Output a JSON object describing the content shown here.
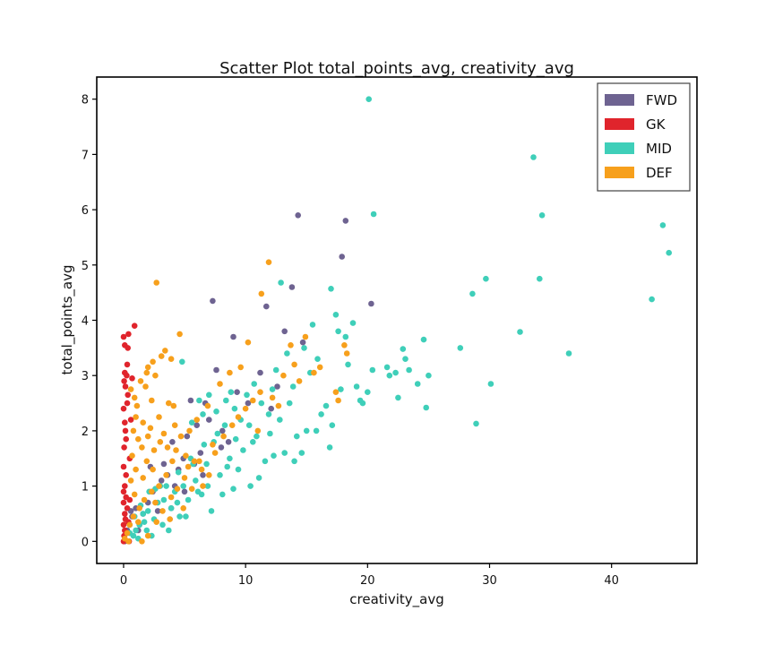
{
  "chart_data": {
    "type": "scatter",
    "title": "Scatter Plot total_points_avg, creativity_avg",
    "xlabel": "creativity_avg",
    "ylabel": "total_points_avg",
    "xlim": [
      -2.2,
      47
    ],
    "ylim": [
      -0.4,
      8.4
    ],
    "xticks": [
      0,
      10,
      20,
      30,
      40
    ],
    "yticks": [
      0,
      1,
      2,
      3,
      4,
      5,
      6,
      7,
      8
    ],
    "grid": false,
    "legend_position": "top-right",
    "series": [
      {
        "name": "FWD",
        "color": "#6e6391",
        "points": [
          [
            0.1,
            0.0
          ],
          [
            0.3,
            0.2
          ],
          [
            0.5,
            0.3
          ],
          [
            0.7,
            0.45
          ],
          [
            1.0,
            0.6
          ],
          [
            1.3,
            0.3
          ],
          [
            1.6,
            0.5
          ],
          [
            2.0,
            0.7
          ],
          [
            2.4,
            0.9
          ],
          [
            2.8,
            0.55
          ],
          [
            3.1,
            1.1
          ],
          [
            3.3,
            1.4
          ],
          [
            3.6,
            1.2
          ],
          [
            3.9,
            0.6
          ],
          [
            4.2,
            1.0
          ],
          [
            4.5,
            1.3
          ],
          [
            4.9,
            1.5
          ],
          [
            5.2,
            1.9
          ],
          [
            5.5,
            2.55
          ],
          [
            5.8,
            1.4
          ],
          [
            6.0,
            2.1
          ],
          [
            6.3,
            1.6
          ],
          [
            6.7,
            2.5
          ],
          [
            7.0,
            2.2
          ],
          [
            7.3,
            4.35
          ],
          [
            7.6,
            3.1
          ],
          [
            8.1,
            2.0
          ],
          [
            8.6,
            1.8
          ],
          [
            9.0,
            3.7
          ],
          [
            9.3,
            2.7
          ],
          [
            10.2,
            2.5
          ],
          [
            11.2,
            3.05
          ],
          [
            11.7,
            4.25
          ],
          [
            12.1,
            2.4
          ],
          [
            12.6,
            2.8
          ],
          [
            13.2,
            3.8
          ],
          [
            13.8,
            4.6
          ],
          [
            14.3,
            5.9
          ],
          [
            14.7,
            3.6
          ],
          [
            17.9,
            5.15
          ],
          [
            18.2,
            5.8
          ],
          [
            20.3,
            4.3
          ],
          [
            0.6,
            0.55
          ],
          [
            1.2,
            0.2
          ],
          [
            2.2,
            1.35
          ],
          [
            4.0,
            1.8
          ],
          [
            6.5,
            1.2
          ],
          [
            8.0,
            1.7
          ],
          [
            5.0,
            0.9
          ]
        ]
      },
      {
        "name": "GK",
        "color": "#e0242c",
        "points": [
          [
            0.0,
            0.0
          ],
          [
            0.05,
            0.1
          ],
          [
            0.1,
            0.2
          ],
          [
            0.0,
            0.3
          ],
          [
            0.15,
            0.4
          ],
          [
            0.1,
            0.5
          ],
          [
            0.3,
            0.6
          ],
          [
            0.0,
            0.7
          ],
          [
            0.2,
            0.8
          ],
          [
            0.0,
            0.9
          ],
          [
            0.1,
            1.0
          ],
          [
            0.05,
            1.7
          ],
          [
            0.2,
            1.85
          ],
          [
            0.15,
            2.0
          ],
          [
            0.1,
            2.15
          ],
          [
            0.0,
            2.4
          ],
          [
            0.3,
            2.5
          ],
          [
            0.15,
            2.8
          ],
          [
            0.05,
            2.9
          ],
          [
            0.25,
            3.0
          ],
          [
            0.1,
            3.05
          ],
          [
            0.3,
            3.2
          ],
          [
            0.35,
            3.5
          ],
          [
            0.1,
            3.55
          ],
          [
            0.0,
            3.7
          ],
          [
            0.4,
            3.75
          ],
          [
            0.9,
            3.9
          ],
          [
            0.7,
            2.95
          ],
          [
            0.6,
            2.2
          ],
          [
            0.5,
            1.5
          ],
          [
            0.4,
            0.35
          ],
          [
            0.25,
            0.15
          ],
          [
            0.5,
            0.75
          ],
          [
            0.2,
            1.2
          ],
          [
            0.35,
            2.65
          ],
          [
            0.0,
            1.35
          ],
          [
            0.45,
            0.0
          ]
        ]
      },
      {
        "name": "MID",
        "color": "#3fcfb9",
        "points": [
          [
            20.1,
            8.0
          ],
          [
            33.6,
            6.95
          ],
          [
            20.5,
            5.92
          ],
          [
            34.3,
            5.9
          ],
          [
            44.2,
            5.72
          ],
          [
            44.7,
            5.22
          ],
          [
            12.9,
            4.68
          ],
          [
            34.1,
            4.75
          ],
          [
            29.7,
            4.75
          ],
          [
            28.6,
            4.48
          ],
          [
            43.3,
            4.38
          ],
          [
            17.0,
            4.57
          ],
          [
            17.4,
            4.1
          ],
          [
            15.5,
            3.92
          ],
          [
            18.2,
            3.7
          ],
          [
            32.5,
            3.79
          ],
          [
            27.6,
            3.5
          ],
          [
            24.6,
            3.65
          ],
          [
            36.5,
            3.4
          ],
          [
            22.9,
            3.48
          ],
          [
            23.1,
            3.3
          ],
          [
            20.4,
            3.1
          ],
          [
            21.6,
            3.15
          ],
          [
            22.3,
            3.05
          ],
          [
            23.4,
            3.1
          ],
          [
            25.0,
            3.0
          ],
          [
            24.1,
            2.85
          ],
          [
            30.1,
            2.85
          ],
          [
            19.6,
            2.5
          ],
          [
            20.0,
            2.7
          ],
          [
            21.8,
            3.0
          ],
          [
            17.8,
            2.75
          ],
          [
            24.8,
            2.42
          ],
          [
            28.9,
            2.13
          ],
          [
            22.5,
            2.6
          ],
          [
            18.4,
            3.2
          ],
          [
            16.2,
            2.3
          ],
          [
            17.1,
            2.1
          ],
          [
            15.0,
            2.0
          ],
          [
            14.2,
            1.9
          ],
          [
            13.6,
            2.5
          ],
          [
            12.8,
            2.2
          ],
          [
            12.2,
            2.75
          ],
          [
            11.3,
            2.5
          ],
          [
            10.9,
            1.9
          ],
          [
            10.3,
            2.1
          ],
          [
            9.8,
            1.65
          ],
          [
            9.1,
            2.4
          ],
          [
            8.7,
            1.5
          ],
          [
            8.3,
            2.1
          ],
          [
            7.9,
            1.2
          ],
          [
            7.4,
            1.8
          ],
          [
            6.9,
            1.0
          ],
          [
            6.5,
            2.3
          ],
          [
            6.1,
            0.9
          ],
          [
            5.7,
            1.4
          ],
          [
            5.3,
            0.75
          ],
          [
            4.9,
            1.0
          ],
          [
            4.6,
            0.45
          ],
          [
            4.2,
            0.9
          ],
          [
            3.9,
            0.6
          ],
          [
            3.5,
            1.0
          ],
          [
            3.2,
            0.3
          ],
          [
            2.8,
            0.7
          ],
          [
            2.5,
            0.4
          ],
          [
            2.1,
            0.9
          ],
          [
            1.9,
            0.2
          ],
          [
            1.6,
            0.5
          ],
          [
            1.3,
            0.3
          ],
          [
            1.0,
            0.2
          ],
          [
            0.8,
            0.1
          ],
          [
            0.5,
            0.15
          ],
          [
            13.2,
            1.6
          ],
          [
            14.6,
            1.6
          ],
          [
            15.8,
            2.0
          ],
          [
            11.6,
            1.45
          ],
          [
            10.6,
            1.8
          ],
          [
            9.4,
            1.3
          ],
          [
            8.1,
            0.85
          ],
          [
            7.2,
            0.55
          ],
          [
            6.8,
            1.4
          ],
          [
            5.9,
            1.1
          ],
          [
            5.1,
            0.45
          ],
          [
            4.4,
            0.7
          ],
          [
            3.7,
            0.2
          ],
          [
            2.3,
            0.1
          ],
          [
            1.4,
            0.65
          ],
          [
            12.5,
            3.1
          ],
          [
            14.8,
            3.5
          ],
          [
            16.6,
            2.45
          ],
          [
            19.1,
            2.8
          ],
          [
            15.3,
            3.05
          ],
          [
            13.9,
            2.8
          ],
          [
            11.9,
            2.3
          ],
          [
            10.1,
            2.65
          ],
          [
            9.6,
            2.2
          ],
          [
            8.8,
            2.7
          ],
          [
            7.7,
            1.95
          ],
          [
            7.0,
            2.65
          ],
          [
            6.2,
            2.55
          ],
          [
            5.5,
            1.5
          ],
          [
            4.8,
            3.25
          ],
          [
            18.8,
            3.95
          ],
          [
            19.4,
            2.55
          ],
          [
            16.9,
            1.7
          ],
          [
            14.0,
            1.45
          ],
          [
            12.3,
            1.55
          ],
          [
            11.1,
            1.15
          ],
          [
            10.4,
            1.0
          ],
          [
            9.0,
            0.95
          ],
          [
            8.5,
            1.35
          ],
          [
            6.4,
            0.85
          ],
          [
            3.0,
            1.0
          ],
          [
            2.0,
            0.55
          ],
          [
            1.7,
            0.35
          ],
          [
            0.9,
            0.45
          ],
          [
            17.6,
            3.8
          ],
          [
            15.9,
            3.3
          ],
          [
            13.4,
            3.4
          ],
          [
            12.0,
            1.95
          ],
          [
            10.7,
            2.85
          ],
          [
            9.2,
            1.85
          ],
          [
            8.4,
            2.55
          ],
          [
            7.6,
            2.35
          ],
          [
            6.6,
            1.75
          ],
          [
            5.6,
            2.15
          ],
          [
            4.5,
            1.25
          ],
          [
            3.3,
            0.75
          ],
          [
            2.6,
            0.95
          ],
          [
            1.2,
            0.05
          ]
        ]
      },
      {
        "name": "DEF",
        "color": "#f7a01c",
        "points": [
          [
            2.7,
            4.68
          ],
          [
            11.9,
            5.05
          ],
          [
            11.3,
            4.48
          ],
          [
            13.7,
            3.55
          ],
          [
            14.0,
            3.2
          ],
          [
            14.9,
            3.7
          ],
          [
            18.1,
            3.55
          ],
          [
            18.3,
            3.4
          ],
          [
            17.4,
            2.7
          ],
          [
            16.1,
            3.15
          ],
          [
            4.6,
            3.75
          ],
          [
            3.4,
            3.45
          ],
          [
            3.1,
            3.35
          ],
          [
            2.4,
            3.25
          ],
          [
            2.0,
            3.15
          ],
          [
            3.9,
            3.3
          ],
          [
            1.4,
            2.9
          ],
          [
            1.8,
            2.8
          ],
          [
            2.6,
            3.0
          ],
          [
            0.9,
            2.6
          ],
          [
            1.1,
            2.45
          ],
          [
            2.3,
            2.55
          ],
          [
            3.7,
            2.5
          ],
          [
            4.1,
            2.45
          ],
          [
            2.9,
            2.25
          ],
          [
            1.6,
            2.15
          ],
          [
            0.8,
            2.0
          ],
          [
            1.2,
            1.85
          ],
          [
            2.0,
            1.9
          ],
          [
            3.0,
            1.8
          ],
          [
            3.6,
            1.7
          ],
          [
            4.3,
            1.65
          ],
          [
            5.1,
            1.55
          ],
          [
            5.8,
            1.45
          ],
          [
            6.4,
            1.3
          ],
          [
            7.0,
            1.2
          ],
          [
            7.5,
            1.6
          ],
          [
            8.2,
            1.9
          ],
          [
            8.9,
            2.1
          ],
          [
            9.4,
            2.25
          ],
          [
            10.0,
            2.4
          ],
          [
            10.6,
            2.55
          ],
          [
            11.2,
            2.7
          ],
          [
            12.7,
            2.45
          ],
          [
            13.1,
            3.0
          ],
          [
            9.6,
            3.15
          ],
          [
            8.7,
            3.05
          ],
          [
            7.9,
            2.85
          ],
          [
            6.9,
            2.45
          ],
          [
            6.0,
            2.2
          ],
          [
            5.4,
            2.0
          ],
          [
            4.7,
            1.9
          ],
          [
            4.0,
            1.45
          ],
          [
            3.5,
            1.2
          ],
          [
            2.9,
            1.0
          ],
          [
            2.3,
            0.9
          ],
          [
            1.7,
            0.75
          ],
          [
            1.3,
            0.6
          ],
          [
            0.8,
            0.45
          ],
          [
            0.5,
            0.3
          ],
          [
            0.3,
            0.15
          ],
          [
            0.1,
            0.05
          ],
          [
            1.5,
            0.0
          ],
          [
            2.0,
            0.1
          ],
          [
            2.7,
            0.35
          ],
          [
            3.2,
            0.55
          ],
          [
            4.4,
            0.95
          ],
          [
            5.0,
            1.15
          ],
          [
            5.6,
            0.95
          ],
          [
            6.2,
            1.45
          ],
          [
            0.6,
            1.1
          ],
          [
            1.0,
            1.3
          ],
          [
            1.9,
            1.45
          ],
          [
            2.5,
            1.65
          ],
          [
            3.3,
            1.95
          ],
          [
            4.2,
            2.1
          ],
          [
            0.7,
            1.55
          ],
          [
            1.5,
            1.7
          ],
          [
            2.2,
            2.05
          ],
          [
            1.0,
            2.25
          ],
          [
            0.6,
            2.75
          ],
          [
            1.9,
            3.05
          ],
          [
            12.2,
            2.6
          ],
          [
            14.4,
            2.9
          ],
          [
            15.6,
            3.05
          ],
          [
            17.6,
            2.55
          ],
          [
            10.2,
            3.6
          ],
          [
            11.0,
            2.0
          ],
          [
            7.3,
            1.75
          ],
          [
            6.5,
            1.0
          ],
          [
            4.9,
            0.6
          ],
          [
            3.8,
            0.4
          ],
          [
            1.2,
            0.35
          ],
          [
            0.4,
            0.0
          ],
          [
            2.6,
            0.7
          ],
          [
            3.9,
            0.8
          ],
          [
            5.3,
            1.35
          ],
          [
            0.9,
            0.85
          ],
          [
            1.6,
            1.15
          ],
          [
            2.4,
            1.3
          ]
        ]
      }
    ]
  }
}
